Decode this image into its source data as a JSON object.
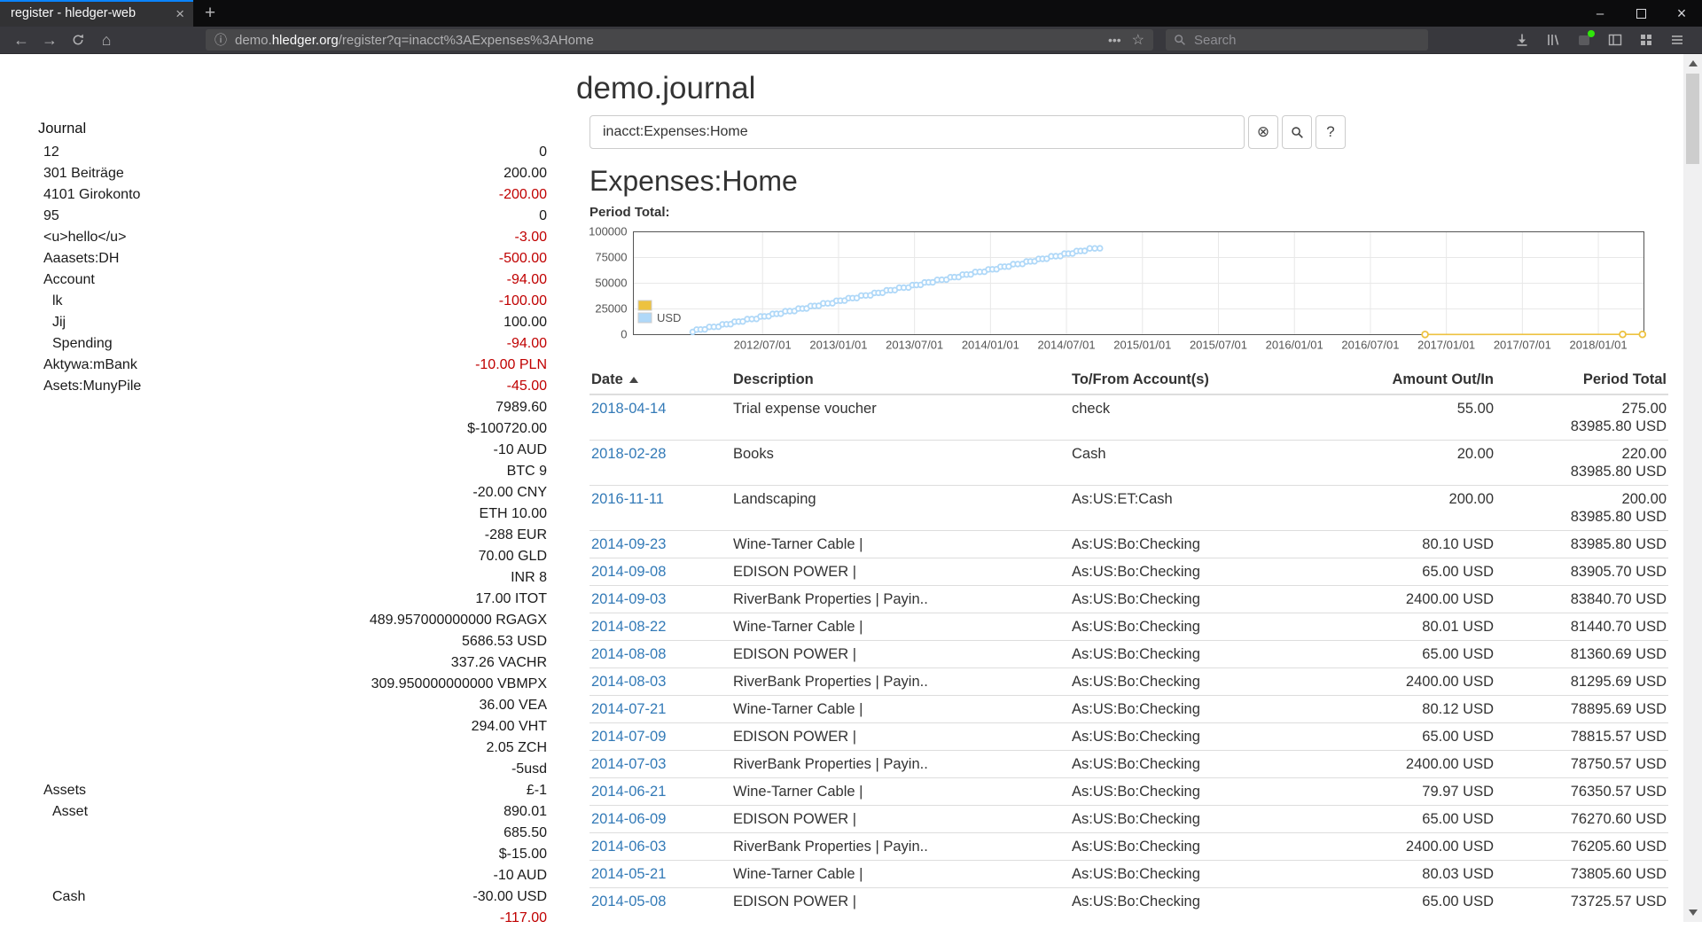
{
  "browser": {
    "tab": {
      "title": "register - hledger-web",
      "close_icon": "×"
    },
    "new_tab_icon": "+",
    "window_controls": {
      "minimize": "–",
      "close": "×"
    },
    "nav": {
      "back_icon": "←",
      "forward_icon": "→",
      "home_icon": "⌂"
    },
    "address_bar": {
      "info_icon": "ⓘ",
      "url_prefix": "demo.",
      "url_domain": "hledger.org",
      "url_path": "/register?q=inacct%3AExpenses%3AHome",
      "overflow_icon": "•••",
      "bookmark_icon": "☆"
    },
    "search": {
      "placeholder": "Search"
    }
  },
  "page": {
    "title": "demo.journal",
    "search": {
      "value": "inacct:Expenses:Home",
      "clear_icon": "⊗",
      "help_label": "?"
    },
    "heading": "Expenses:Home",
    "chart_label": "Period Total:"
  },
  "colors": {
    "negative": "#c00000",
    "link": "#337ab7",
    "series_other": "#edc240",
    "series_usd": "#afd8f8"
  },
  "sidebar": {
    "title": "Journal",
    "items": [
      {
        "name": "12",
        "depth": 1,
        "balance": "0",
        "negative": false
      },
      {
        "name": "301 Beiträge",
        "depth": 1,
        "balance": "200.00",
        "negative": false
      },
      {
        "name": "4101 Girokonto",
        "depth": 1,
        "balance": "-200.00",
        "negative": true
      },
      {
        "name": "95",
        "depth": 1,
        "balance": "0",
        "negative": false
      },
      {
        "name": "<u>hello</u>",
        "depth": 1,
        "balance": "-3.00",
        "negative": true
      },
      {
        "name": "Aaasets:DH",
        "depth": 1,
        "balance": "-500.00",
        "negative": true
      },
      {
        "name": "Account",
        "depth": 1,
        "balance": "-94.00",
        "negative": true
      },
      {
        "name": "lk",
        "depth": 2,
        "balance": "-100.00",
        "negative": true
      },
      {
        "name": "Jij",
        "depth": 2,
        "balance": "100.00",
        "negative": false
      },
      {
        "name": "Spending",
        "depth": 2,
        "balance": "-94.00",
        "negative": true
      },
      {
        "name": "Aktywa:mBank",
        "depth": 1,
        "balance": "-10.00 PLN",
        "negative": true
      },
      {
        "name": "Asets:MunyPile",
        "depth": 1,
        "balance": "-45.00",
        "negative": true
      },
      {
        "name": "",
        "depth": 1,
        "balance": "7989.60",
        "negative": false
      },
      {
        "name": "",
        "depth": 1,
        "balance": "$-100720.00",
        "negative": false
      },
      {
        "name": "",
        "depth": 1,
        "balance": "-10 AUD",
        "negative": false
      },
      {
        "name": "",
        "depth": 1,
        "balance": "BTC 9",
        "negative": false
      },
      {
        "name": "",
        "depth": 1,
        "balance": "-20.00 CNY",
        "negative": false
      },
      {
        "name": "",
        "depth": 1,
        "balance": "ETH 10.00",
        "negative": false
      },
      {
        "name": "",
        "depth": 1,
        "balance": "-288 EUR",
        "negative": false
      },
      {
        "name": "",
        "depth": 1,
        "balance": "70.00 GLD",
        "negative": false
      },
      {
        "name": "",
        "depth": 1,
        "balance": "INR 8",
        "negative": false
      },
      {
        "name": "",
        "depth": 1,
        "balance": "17.00 ITOT",
        "negative": false
      },
      {
        "name": "",
        "depth": 1,
        "balance": "489.957000000000 RGAGX",
        "negative": false
      },
      {
        "name": "",
        "depth": 1,
        "balance": "5686.53 USD",
        "negative": false
      },
      {
        "name": "",
        "depth": 1,
        "balance": "337.26 VACHR",
        "negative": false
      },
      {
        "name": "",
        "depth": 1,
        "balance": "309.950000000000 VBMPX",
        "negative": false
      },
      {
        "name": "",
        "depth": 1,
        "balance": "36.00 VEA",
        "negative": false
      },
      {
        "name": "",
        "depth": 1,
        "balance": "294.00 VHT",
        "negative": false
      },
      {
        "name": "",
        "depth": 1,
        "balance": "2.05 ZCH",
        "negative": false
      },
      {
        "name": "",
        "depth": 1,
        "balance": "-5usd",
        "negative": false
      },
      {
        "name": "Assets",
        "depth": 1,
        "balance": "£-1",
        "negative": false
      },
      {
        "name": "Asset",
        "depth": 2,
        "balance": "890.01",
        "negative": false
      },
      {
        "name": "",
        "depth": 2,
        "balance": "685.50",
        "negative": false
      },
      {
        "name": "",
        "depth": 2,
        "balance": "$-15.00",
        "negative": false
      },
      {
        "name": "",
        "depth": 2,
        "balance": "-10 AUD",
        "negative": false
      },
      {
        "name": "Cash",
        "depth": 2,
        "balance": "-30.00 USD",
        "negative": false
      },
      {
        "name": "",
        "depth": 2,
        "balance": "-117.00",
        "negative": true
      }
    ]
  },
  "register": {
    "columns": [
      "Date",
      "Description",
      "To/From Account(s)",
      "Amount Out/In",
      "Period Total"
    ],
    "rows": [
      {
        "date": "2018-04-14",
        "description": "Trial expense voucher",
        "account": "check",
        "amount": "55.00",
        "total": [
          "275.00",
          "83985.80 USD"
        ]
      },
      {
        "date": "2018-02-28",
        "description": "Books",
        "account": "Cash",
        "amount": "20.00",
        "total": [
          "220.00",
          "83985.80 USD"
        ]
      },
      {
        "date": "2016-11-11",
        "description": "Landscaping",
        "account": "As:US:ET:Cash",
        "amount": "200.00",
        "total": [
          "200.00",
          "83985.80 USD"
        ]
      },
      {
        "date": "2014-09-23",
        "description": "Wine-Tarner Cable |",
        "account": "As:US:Bo:Checking",
        "amount": "80.10 USD",
        "total": [
          "83985.80 USD"
        ]
      },
      {
        "date": "2014-09-08",
        "description": "EDISON POWER |",
        "account": "As:US:Bo:Checking",
        "amount": "65.00 USD",
        "total": [
          "83905.70 USD"
        ]
      },
      {
        "date": "2014-09-03",
        "description": "RiverBank Properties | Payin..",
        "account": "As:US:Bo:Checking",
        "amount": "2400.00 USD",
        "total": [
          "83840.70 USD"
        ]
      },
      {
        "date": "2014-08-22",
        "description": "Wine-Tarner Cable |",
        "account": "As:US:Bo:Checking",
        "amount": "80.01 USD",
        "total": [
          "81440.70 USD"
        ]
      },
      {
        "date": "2014-08-08",
        "description": "EDISON POWER |",
        "account": "As:US:Bo:Checking",
        "amount": "65.00 USD",
        "total": [
          "81360.69 USD"
        ]
      },
      {
        "date": "2014-08-03",
        "description": "RiverBank Properties | Payin..",
        "account": "As:US:Bo:Checking",
        "amount": "2400.00 USD",
        "total": [
          "81295.69 USD"
        ]
      },
      {
        "date": "2014-07-21",
        "description": "Wine-Tarner Cable |",
        "account": "As:US:Bo:Checking",
        "amount": "80.12 USD",
        "total": [
          "78895.69 USD"
        ]
      },
      {
        "date": "2014-07-09",
        "description": "EDISON POWER |",
        "account": "As:US:Bo:Checking",
        "amount": "65.00 USD",
        "total": [
          "78815.57 USD"
        ]
      },
      {
        "date": "2014-07-03",
        "description": "RiverBank Properties | Payin..",
        "account": "As:US:Bo:Checking",
        "amount": "2400.00 USD",
        "total": [
          "78750.57 USD"
        ]
      },
      {
        "date": "2014-06-21",
        "description": "Wine-Tarner Cable |",
        "account": "As:US:Bo:Checking",
        "amount": "79.97 USD",
        "total": [
          "76350.57 USD"
        ]
      },
      {
        "date": "2014-06-09",
        "description": "EDISON POWER |",
        "account": "As:US:Bo:Checking",
        "amount": "65.00 USD",
        "total": [
          "76270.60 USD"
        ]
      },
      {
        "date": "2014-06-03",
        "description": "RiverBank Properties | Payin..",
        "account": "As:US:Bo:Checking",
        "amount": "2400.00 USD",
        "total": [
          "76205.60 USD"
        ]
      },
      {
        "date": "2014-05-21",
        "description": "Wine-Tarner Cable |",
        "account": "As:US:Bo:Checking",
        "amount": "80.03 USD",
        "total": [
          "73805.60 USD"
        ]
      },
      {
        "date": "2014-05-08",
        "description": "EDISON POWER |",
        "account": "As:US:Bo:Checking",
        "amount": "65.00 USD",
        "total": [
          "73725.57 USD"
        ]
      }
    ]
  },
  "chart_data": {
    "type": "line",
    "title": "Period Total:",
    "xlim": [
      2011.65,
      2018.3
    ],
    "ylim": [
      0,
      100000
    ],
    "grid": true,
    "legend_position": "bottom-left",
    "y_ticks": [
      0,
      25000,
      50000,
      75000,
      100000
    ],
    "x_ticks": [
      {
        "t": 2012.5,
        "label": "2012/07/01"
      },
      {
        "t": 2013.0,
        "label": "2013/01/01"
      },
      {
        "t": 2013.5,
        "label": "2013/07/01"
      },
      {
        "t": 2014.0,
        "label": "2014/01/01"
      },
      {
        "t": 2014.5,
        "label": "2014/07/01"
      },
      {
        "t": 2015.0,
        "label": "2015/01/01"
      },
      {
        "t": 2015.5,
        "label": "2015/07/01"
      },
      {
        "t": 2016.0,
        "label": "2016/01/01"
      },
      {
        "t": 2016.5,
        "label": "2016/07/01"
      },
      {
        "t": 2017.0,
        "label": "2017/01/01"
      },
      {
        "t": 2017.5,
        "label": "2017/07/01"
      },
      {
        "t": 2018.0,
        "label": "2018/01/01"
      }
    ],
    "legend": [
      {
        "label": "",
        "color": "#edc240"
      },
      {
        "label": "USD",
        "color": "#afd8f8"
      }
    ],
    "series": [
      {
        "name": "",
        "color": "#edc240",
        "points": [
          [
            2016.86,
            200
          ],
          [
            2018.16,
            220
          ],
          [
            2018.29,
            275
          ]
        ]
      },
      {
        "name": "USD",
        "color": "#afd8f8",
        "points": [
          [
            2012.04,
            2545
          ],
          [
            2012.12,
            5090
          ],
          [
            2012.21,
            7635
          ],
          [
            2012.29,
            10180
          ],
          [
            2012.37,
            12725
          ],
          [
            2012.46,
            15270
          ],
          [
            2012.54,
            17815
          ],
          [
            2012.62,
            20360
          ],
          [
            2012.71,
            22905
          ],
          [
            2012.79,
            25450
          ],
          [
            2012.87,
            27995
          ],
          [
            2012.96,
            30540
          ],
          [
            2013.04,
            33085
          ],
          [
            2013.12,
            35630
          ],
          [
            2013.21,
            38175
          ],
          [
            2013.29,
            40720
          ],
          [
            2013.37,
            43265
          ],
          [
            2013.46,
            45810
          ],
          [
            2013.54,
            48355
          ],
          [
            2013.62,
            50900
          ],
          [
            2013.71,
            53445
          ],
          [
            2013.79,
            55990
          ],
          [
            2013.87,
            58535
          ],
          [
            2013.96,
            61080
          ],
          [
            2014.04,
            63625
          ],
          [
            2014.12,
            66170
          ],
          [
            2014.21,
            68715
          ],
          [
            2014.29,
            71260
          ],
          [
            2014.37,
            73805.6
          ],
          [
            2014.46,
            76350.57
          ],
          [
            2014.54,
            78895.69
          ],
          [
            2014.62,
            81440.7
          ],
          [
            2014.72,
            83985.8
          ]
        ]
      }
    ]
  }
}
